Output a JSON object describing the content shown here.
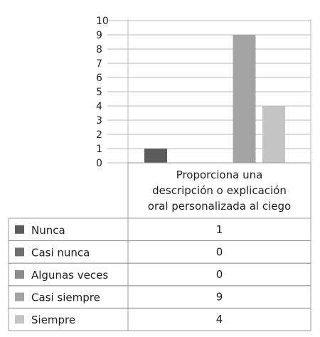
{
  "chart_data": {
    "type": "bar",
    "categories": [
      "Proporciona una descripción o explicación oral personalizada al ciego"
    ],
    "category_lines": [
      "Proporciona una",
      "descripción o explicación",
      "oral personalizada al ciego"
    ],
    "series": [
      {
        "name": "Nunca",
        "values": [
          1
        ],
        "color": "#5c5c5c"
      },
      {
        "name": "Casi nunca",
        "values": [
          0
        ],
        "color": "#6e6e6e"
      },
      {
        "name": "Algunas veces",
        "values": [
          0
        ],
        "color": "#8c8c8c"
      },
      {
        "name": "Casi siempre",
        "values": [
          9
        ],
        "color": "#a3a3a3"
      },
      {
        "name": "Siempre",
        "values": [
          4
        ],
        "color": "#c4c4c4"
      }
    ],
    "yticks": [
      0,
      1,
      2,
      3,
      4,
      5,
      6,
      7,
      8,
      9,
      10
    ],
    "ylim": [
      0,
      10
    ],
    "grid": true,
    "legend": "data-table-left"
  }
}
